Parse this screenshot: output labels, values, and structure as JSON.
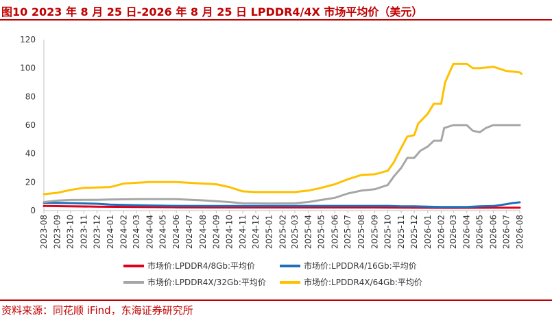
{
  "figure": {
    "title": "图10  2023 年 8 月 25 日-2026 年 8 月 25 日 LPDDR4/4X 市场平均价（美元）",
    "source": "资料来源：同花顺 iFind，东海证券研究所"
  },
  "chart_data": {
    "type": "line",
    "title": "",
    "xlabel": "",
    "ylabel": "",
    "ylim": [
      0,
      120
    ],
    "yticks": [
      0,
      20,
      40,
      60,
      80,
      100,
      120
    ],
    "grid": false,
    "legend_position": "bottom",
    "x_start": "2023-08",
    "x_end": "2026-08",
    "xticks": [
      "2023-08",
      "2023-09",
      "2023-10",
      "2023-11",
      "2023-12",
      "2024-01",
      "2024-02",
      "2024-03",
      "2024-04",
      "2024-05",
      "2024-06",
      "2024-07",
      "2024-08",
      "2024-09",
      "2024-10",
      "2024-11",
      "2024-12",
      "2025-01",
      "2025-02",
      "2025-03",
      "2025-04",
      "2025-05",
      "2025-06",
      "2025-07",
      "2025-08",
      "2025-09",
      "2025-10",
      "2025-11",
      "2025-12",
      "2026-01",
      "2026-02",
      "2026-03",
      "2026-04",
      "2026-05",
      "2026-06",
      "2026-07",
      "2026-08"
    ],
    "series": [
      {
        "name": "市场价:LPDDR4/8Gb:平均价",
        "color": "#e0001b",
        "points": [
          [
            "2023-08",
            3.2
          ],
          [
            "2023-10",
            3.0
          ],
          [
            "2023-12",
            2.8
          ],
          [
            "2024-03",
            2.5
          ],
          [
            "2024-06",
            2.3
          ],
          [
            "2024-09",
            2.2
          ],
          [
            "2024-12",
            2.2
          ],
          [
            "2025-03",
            2.2
          ],
          [
            "2025-06",
            2.2
          ],
          [
            "2025-09",
            2.2
          ],
          [
            "2025-12",
            2.0
          ],
          [
            "2026-03",
            1.9
          ],
          [
            "2026-06",
            2.0
          ],
          [
            "2026-08",
            2.0
          ]
        ]
      },
      {
        "name": "市场价:LPDDR4/16Gb:平均价",
        "color": "#1f6fb8",
        "points": [
          [
            "2023-08",
            5.5
          ],
          [
            "2023-10",
            5.3
          ],
          [
            "2023-12",
            4.8
          ],
          [
            "2024-01",
            4.2
          ],
          [
            "2024-02",
            4.0
          ],
          [
            "2024-04",
            3.6
          ],
          [
            "2024-06",
            3.3
          ],
          [
            "2024-09",
            3.2
          ],
          [
            "2024-12",
            3.2
          ],
          [
            "2025-03",
            3.3
          ],
          [
            "2025-06",
            3.3
          ],
          [
            "2025-09",
            3.3
          ],
          [
            "2025-10",
            3.3
          ],
          [
            "2025-11",
            3.0
          ],
          [
            "2025-12",
            3.0
          ],
          [
            "2026-01",
            2.8
          ],
          [
            "2026-02",
            2.5
          ],
          [
            "2026-03",
            2.5
          ],
          [
            "2026-04",
            2.5
          ],
          [
            "2026-05",
            3.0
          ],
          [
            "2026-06",
            3.2
          ],
          [
            "2026-07",
            4.5
          ],
          [
            "2026-07-15",
            5.3
          ],
          [
            "2026-08",
            5.8
          ]
        ]
      },
      {
        "name": "市场价:LPDDR4X/32Gb:平均价",
        "color": "#a6a6a6",
        "points": [
          [
            "2023-08",
            6.0
          ],
          [
            "2023-09",
            7.0
          ],
          [
            "2023-10",
            7.5
          ],
          [
            "2023-12",
            7.6
          ],
          [
            "2024-01",
            7.8
          ],
          [
            "2024-03",
            8.0
          ],
          [
            "2024-06",
            8.0
          ],
          [
            "2024-08",
            7.2
          ],
          [
            "2024-10",
            6.0
          ],
          [
            "2024-11",
            5.2
          ],
          [
            "2025-01",
            5.0
          ],
          [
            "2025-03",
            5.2
          ],
          [
            "2025-04",
            6.0
          ],
          [
            "2025-05",
            7.5
          ],
          [
            "2025-06",
            9.0
          ],
          [
            "2025-07",
            12.0
          ],
          [
            "2025-08",
            14.0
          ],
          [
            "2025-09",
            15.0
          ],
          [
            "2025-10",
            18.0
          ],
          [
            "2025-10-15",
            24.0
          ],
          [
            "2025-11",
            30.0
          ],
          [
            "2025-11-15",
            37.0
          ],
          [
            "2025-12",
            37.0
          ],
          [
            "2025-12-15",
            42.0
          ],
          [
            "2026-01",
            45.0
          ],
          [
            "2026-01-15",
            49.0
          ],
          [
            "2026-02",
            49.0
          ],
          [
            "2026-02-08",
            58.0
          ],
          [
            "2026-03",
            60.0
          ],
          [
            "2026-04",
            60.0
          ],
          [
            "2026-04-15",
            56.0
          ],
          [
            "2026-05",
            55.0
          ],
          [
            "2026-05-15",
            58.0
          ],
          [
            "2026-06",
            60.0
          ],
          [
            "2026-08",
            60.0
          ]
        ]
      },
      {
        "name": "市场价:LPDDR4X/64Gb:平均价",
        "color": "#ffc000",
        "points": [
          [
            "2023-08",
            11.5
          ],
          [
            "2023-09",
            12.5
          ],
          [
            "2023-10",
            14.5
          ],
          [
            "2023-11",
            16.0
          ],
          [
            "2024-01",
            16.5
          ],
          [
            "2024-02",
            19.0
          ],
          [
            "2024-03",
            19.5
          ],
          [
            "2024-04",
            20.0
          ],
          [
            "2024-06",
            20.0
          ],
          [
            "2024-07",
            19.5
          ],
          [
            "2024-09",
            18.5
          ],
          [
            "2024-10",
            16.5
          ],
          [
            "2024-11",
            13.5
          ],
          [
            "2024-12",
            13.0
          ],
          [
            "2025-03",
            13.0
          ],
          [
            "2025-04",
            14.0
          ],
          [
            "2025-05",
            16.0
          ],
          [
            "2025-06",
            18.5
          ],
          [
            "2025-07",
            22.0
          ],
          [
            "2025-08",
            25.0
          ],
          [
            "2025-09",
            25.5
          ],
          [
            "2025-10",
            28.0
          ],
          [
            "2025-10-15",
            34.0
          ],
          [
            "2025-11",
            44.0
          ],
          [
            "2025-11-15",
            52.0
          ],
          [
            "2025-12",
            53.0
          ],
          [
            "2025-12-10",
            61.0
          ],
          [
            "2026-01",
            68.0
          ],
          [
            "2026-01-15",
            75.0
          ],
          [
            "2026-02",
            75.0
          ],
          [
            "2026-02-10",
            90.0
          ],
          [
            "2026-03",
            103.0
          ],
          [
            "2026-04",
            103.0
          ],
          [
            "2026-04-15",
            100.0
          ],
          [
            "2026-05",
            100.0
          ],
          [
            "2026-06",
            101.0
          ],
          [
            "2026-07",
            98.0
          ],
          [
            "2026-08",
            97.0
          ],
          [
            "2026-08-05",
            96.0
          ]
        ]
      }
    ]
  }
}
